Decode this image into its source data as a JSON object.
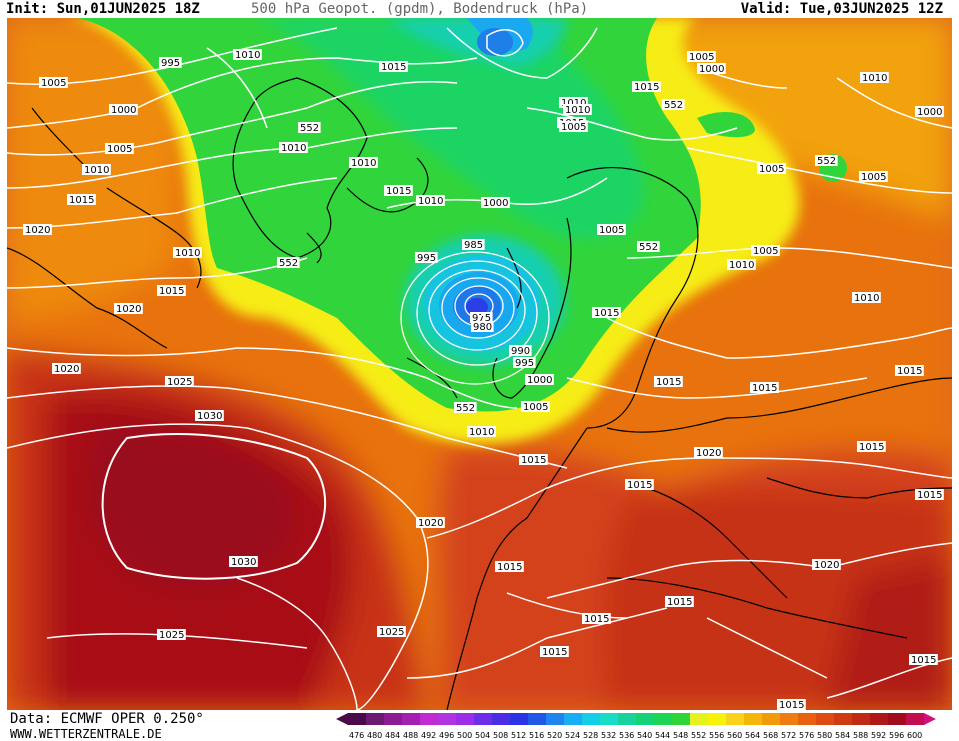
{
  "header": {
    "init": "Init: Sun,01JUN2025 18Z",
    "title": "500 hPa Geopot. (gpdm), Bodendruck (hPa)",
    "valid": "Valid: Tue,03JUN2025 12Z"
  },
  "footer": {
    "data_source": "Data: ECMWF OPER 0.250°",
    "url": "WWW.WETTERZENTRALE.DE"
  },
  "legend": {
    "values": [
      "476",
      "480",
      "484",
      "488",
      "492",
      "496",
      "500",
      "504",
      "508",
      "512",
      "516",
      "520",
      "524",
      "528",
      "532",
      "536",
      "540",
      "544",
      "548",
      "552",
      "556",
      "560",
      "564",
      "568",
      "572",
      "576",
      "580",
      "584",
      "588",
      "592",
      "596",
      "600"
    ],
    "colors": [
      "#4b0b4b",
      "#6d1a73",
      "#8c1c93",
      "#a51fb0",
      "#c02ccf",
      "#b234e0",
      "#9b2ee6",
      "#6e2de8",
      "#4b2de6",
      "#2b33e6",
      "#1f58e8",
      "#1f85ee",
      "#18aef2",
      "#16cde8",
      "#19dcc8",
      "#18d49c",
      "#16d277",
      "#1ed455",
      "#30d53a",
      "#e6f21f",
      "#f6f20a",
      "#f9d21a",
      "#f5b60c",
      "#f39a0a",
      "#ee7c10",
      "#e9600f",
      "#de4a12",
      "#cf3a12",
      "#bf2a14",
      "#ae1818",
      "#a00e1e",
      "#c00e4e"
    ]
  },
  "isobar_labels": [
    "995",
    "1010",
    "1015",
    "1005",
    "1000",
    "1005",
    "1010",
    "1015",
    "1020",
    "1010",
    "1015",
    "1020",
    "1020",
    "1025",
    "1030",
    "1030",
    "1025",
    "552",
    "1010",
    "1010",
    "1015",
    "1010",
    "552",
    "1015",
    "1010",
    "1000",
    "985",
    "995",
    "975",
    "980",
    "990",
    "995",
    "1000",
    "1005",
    "552",
    "1010",
    "1015",
    "1020",
    "1025",
    "1005",
    "1000",
    "1015",
    "552",
    "1010",
    "1005",
    "1005",
    "552",
    "1005",
    "1005",
    "1005",
    "1000",
    "1010",
    "1015",
    "1010",
    "1010",
    "1015",
    "1015",
    "1020",
    "1015",
    "1015",
    "1015",
    "1020",
    "1015",
    "1015",
    "1015",
    "1015",
    "1015",
    "1015",
    "552",
    "1015"
  ],
  "colors": {
    "background": "#ffffff",
    "isobar": "#ffffff",
    "coastline": "#000000"
  }
}
